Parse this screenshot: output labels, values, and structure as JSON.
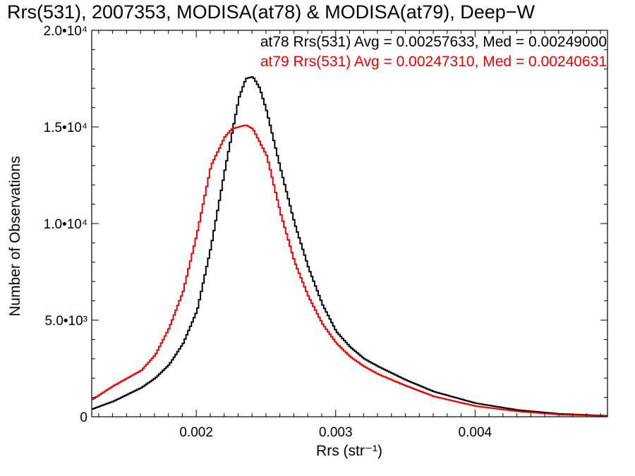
{
  "chart_data": {
    "type": "line",
    "title": "Rrs(531), 2007353, MODISA(at78) & MODISA(at79), Deep−W",
    "xlabel": "Rrs (str⁻¹)",
    "ylabel": "Number of Observations",
    "xlim": [
      0.00125,
      0.00495
    ],
    "ylim": [
      0,
      20000
    ],
    "x_ticks": [
      {
        "value": 0.002,
        "label": "0.002"
      },
      {
        "value": 0.003,
        "label": "0.003"
      },
      {
        "value": 0.004,
        "label": "0.004"
      }
    ],
    "y_ticks": [
      {
        "value": 0,
        "label": "0"
      },
      {
        "value": 5000,
        "label": "5.0•10³"
      },
      {
        "value": 10000,
        "label": "1.0•10⁴"
      },
      {
        "value": 15000,
        "label": "1.5•10⁴"
      },
      {
        "value": 20000,
        "label": "2.0•10⁴"
      }
    ],
    "grid": false,
    "legend_placement": "top-right",
    "annotations": [
      "at78 Rrs(531) Avg = 0.00257633, Med = 0.00249000",
      "at79 Rrs(531) Avg = 0.00247310, Med = 0.00240631"
    ],
    "series": [
      {
        "color": "#000000",
        "x": [
          0.00125,
          0.0014,
          0.0016,
          0.0017,
          0.0018,
          0.0019,
          0.002,
          0.0021,
          0.0022,
          0.0023,
          0.00235,
          0.0024,
          0.00245,
          0.0025,
          0.0026,
          0.0027,
          0.0028,
          0.0029,
          0.003,
          0.0031,
          0.0032,
          0.0033,
          0.0035,
          0.0037,
          0.004,
          0.0043,
          0.0046,
          0.00495
        ],
        "values": [
          400,
          800,
          1500,
          2000,
          2700,
          3800,
          5500,
          8800,
          12800,
          16500,
          17500,
          17600,
          17000,
          15800,
          12800,
          10000,
          7700,
          5800,
          4400,
          3600,
          3000,
          2600,
          1900,
          1300,
          700,
          350,
          150,
          50
        ]
      },
      {
        "color": "#ee0000",
        "x": [
          0.00125,
          0.0014,
          0.0016,
          0.0017,
          0.0018,
          0.0019,
          0.002,
          0.0021,
          0.0022,
          0.00225,
          0.0023,
          0.00235,
          0.0024,
          0.0025,
          0.0026,
          0.0027,
          0.0028,
          0.0029,
          0.003,
          0.0031,
          0.0032,
          0.0033,
          0.0035,
          0.0037,
          0.004,
          0.0043,
          0.0046,
          0.00495
        ],
        "values": [
          900,
          1600,
          2400,
          3200,
          4600,
          6500,
          9500,
          13000,
          14500,
          14900,
          15000,
          15100,
          14900,
          13500,
          10500,
          8000,
          6200,
          4800,
          3800,
          3100,
          2600,
          2200,
          1600,
          1050,
          550,
          280,
          110,
          40
        ]
      }
    ]
  },
  "colors": {
    "series_a": "#000000",
    "series_b": "#ee0000",
    "axis": "#000000",
    "background": "#ffffff"
  }
}
